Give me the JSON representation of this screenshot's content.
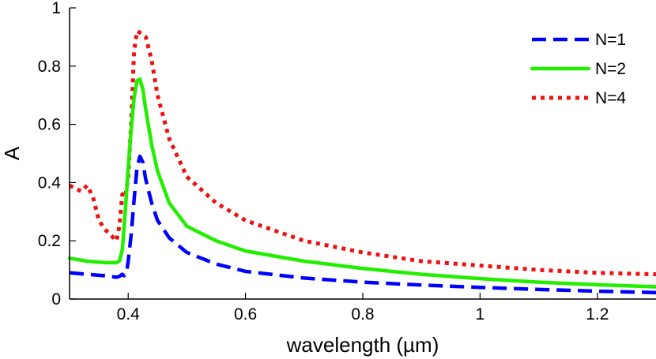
{
  "chart_data": {
    "type": "line",
    "title": "",
    "xlabel": "wavelength (µm)",
    "ylabel": "A",
    "xlim": [
      0.3,
      1.3
    ],
    "ylim": [
      0,
      1
    ],
    "xticks": [
      0.4,
      0.6,
      0.8,
      1,
      1.2
    ],
    "xtick_labels": [
      "0.4",
      "0.6",
      "0.8",
      "1",
      "1.2"
    ],
    "yticks": [
      0,
      0.2,
      0.4,
      0.6,
      0.8,
      1
    ],
    "ytick_labels": [
      "0",
      "0.2",
      "0.4",
      "0.6",
      "0.8",
      "1"
    ],
    "grid": false,
    "legend_position": "top-right",
    "series": [
      {
        "name": "N=1",
        "color": "#0000ff",
        "style": "dashed",
        "x": [
          0.3,
          0.33,
          0.36,
          0.38,
          0.385,
          0.39,
          0.393,
          0.397,
          0.4,
          0.405,
          0.41,
          0.415,
          0.42,
          0.425,
          0.43,
          0.44,
          0.45,
          0.47,
          0.5,
          0.55,
          0.6,
          0.7,
          0.8,
          0.9,
          1.0,
          1.1,
          1.2,
          1.3
        ],
        "values": [
          0.09,
          0.085,
          0.08,
          0.075,
          0.078,
          0.085,
          0.08,
          0.09,
          0.13,
          0.22,
          0.34,
          0.45,
          0.49,
          0.47,
          0.41,
          0.33,
          0.27,
          0.21,
          0.16,
          0.12,
          0.095,
          0.072,
          0.058,
          0.048,
          0.04,
          0.033,
          0.027,
          0.022
        ]
      },
      {
        "name": "N=2",
        "color": "#22ee00",
        "style": "solid",
        "x": [
          0.3,
          0.33,
          0.36,
          0.38,
          0.385,
          0.39,
          0.395,
          0.4,
          0.405,
          0.41,
          0.415,
          0.42,
          0.425,
          0.43,
          0.44,
          0.45,
          0.47,
          0.5,
          0.55,
          0.6,
          0.7,
          0.8,
          0.9,
          1.0,
          1.1,
          1.2,
          1.3
        ],
        "values": [
          0.14,
          0.13,
          0.125,
          0.125,
          0.13,
          0.17,
          0.3,
          0.45,
          0.58,
          0.69,
          0.75,
          0.755,
          0.72,
          0.65,
          0.53,
          0.44,
          0.33,
          0.25,
          0.2,
          0.165,
          0.13,
          0.105,
          0.085,
          0.07,
          0.058,
          0.049,
          0.042
        ]
      },
      {
        "name": "N=4",
        "color": "#ee1111",
        "style": "dotted",
        "x": [
          0.3,
          0.31,
          0.32,
          0.33,
          0.34,
          0.35,
          0.36,
          0.37,
          0.38,
          0.385,
          0.39,
          0.395,
          0.4,
          0.405,
          0.41,
          0.415,
          0.42,
          0.43,
          0.44,
          0.45,
          0.47,
          0.5,
          0.55,
          0.6,
          0.7,
          0.8,
          0.9,
          1.0,
          1.1,
          1.2,
          1.3
        ],
        "values": [
          0.39,
          0.38,
          0.37,
          0.39,
          0.35,
          0.27,
          0.24,
          0.22,
          0.2,
          0.25,
          0.36,
          0.35,
          0.42,
          0.6,
          0.85,
          0.92,
          0.915,
          0.9,
          0.82,
          0.7,
          0.55,
          0.42,
          0.33,
          0.27,
          0.2,
          0.16,
          0.13,
          0.115,
          0.1,
          0.09,
          0.085
        ]
      }
    ]
  }
}
